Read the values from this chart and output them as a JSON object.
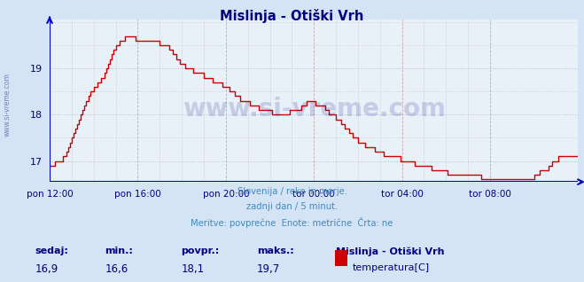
{
  "title": "Mislinja - Otiški Vrh",
  "bg_color": "#d4e4f4",
  "plot_bg_color": "#e8f0f8",
  "line_color": "#cc0000",
  "line_width": 1.0,
  "ylim": [
    16.55,
    20.05
  ],
  "yticks": [
    17,
    18,
    19
  ],
  "xlabel_color": "#000080",
  "ylabel_color": "#000080",
  "title_color": "#000080",
  "grid_color_dotted": "#c8a8a8",
  "grid_color_hline": "#aaaacc",
  "axis_color": "#0000cc",
  "watermark": "www.si-vreme.com",
  "watermark_color": "#000080",
  "watermark_alpha": 0.15,
  "subtitle_lines": [
    "Slovenija / reke in morje.",
    "zadnji dan / 5 minut.",
    "Meritve: povprečne  Enote: metrične  Črta: ne"
  ],
  "subtitle_color": "#4488bb",
  "footer_labels": [
    "sedaj:",
    "min.:",
    "povpr.:",
    "maks.:"
  ],
  "footer_values": [
    "16,9",
    "16,6",
    "18,1",
    "19,7"
  ],
  "footer_series_name": "Mislinja - Otiški Vrh",
  "footer_legend_label": "temperatura[C]",
  "footer_legend_color": "#cc0000",
  "footer_color": "#000080",
  "xtick_labels": [
    "pon 12:00",
    "pon 16:00",
    "pon 20:00",
    "tor 00:00",
    "tor 04:00",
    "tor 08:00"
  ],
  "xtick_positions": [
    0,
    48,
    96,
    144,
    192,
    240
  ],
  "n_points": 289,
  "temp_data": [
    16.9,
    16.9,
    16.9,
    17.0,
    17.0,
    17.0,
    17.0,
    17.1,
    17.1,
    17.2,
    17.3,
    17.4,
    17.5,
    17.6,
    17.7,
    17.8,
    17.9,
    18.0,
    18.1,
    18.2,
    18.3,
    18.4,
    18.5,
    18.5,
    18.6,
    18.6,
    18.7,
    18.7,
    18.8,
    18.8,
    18.9,
    19.0,
    19.1,
    19.2,
    19.3,
    19.4,
    19.5,
    19.5,
    19.6,
    19.6,
    19.6,
    19.7,
    19.7,
    19.7,
    19.7,
    19.7,
    19.7,
    19.6,
    19.6,
    19.6,
    19.6,
    19.6,
    19.6,
    19.6,
    19.6,
    19.6,
    19.6,
    19.6,
    19.6,
    19.6,
    19.5,
    19.5,
    19.5,
    19.5,
    19.5,
    19.4,
    19.4,
    19.3,
    19.3,
    19.2,
    19.2,
    19.1,
    19.1,
    19.1,
    19.0,
    19.0,
    19.0,
    19.0,
    18.9,
    18.9,
    18.9,
    18.9,
    18.9,
    18.9,
    18.8,
    18.8,
    18.8,
    18.8,
    18.8,
    18.7,
    18.7,
    18.7,
    18.7,
    18.7,
    18.6,
    18.6,
    18.6,
    18.6,
    18.5,
    18.5,
    18.5,
    18.4,
    18.4,
    18.4,
    18.3,
    18.3,
    18.3,
    18.3,
    18.3,
    18.2,
    18.2,
    18.2,
    18.2,
    18.2,
    18.1,
    18.1,
    18.1,
    18.1,
    18.1,
    18.1,
    18.1,
    18.0,
    18.0,
    18.0,
    18.0,
    18.0,
    18.0,
    18.0,
    18.0,
    18.0,
    18.0,
    18.1,
    18.1,
    18.1,
    18.1,
    18.1,
    18.1,
    18.2,
    18.2,
    18.2,
    18.3,
    18.3,
    18.3,
    18.3,
    18.3,
    18.2,
    18.2,
    18.2,
    18.2,
    18.2,
    18.1,
    18.1,
    18.0,
    18.0,
    18.0,
    18.0,
    17.9,
    17.9,
    17.9,
    17.8,
    17.8,
    17.7,
    17.7,
    17.6,
    17.6,
    17.5,
    17.5,
    17.5,
    17.4,
    17.4,
    17.4,
    17.4,
    17.3,
    17.3,
    17.3,
    17.3,
    17.3,
    17.2,
    17.2,
    17.2,
    17.2,
    17.2,
    17.1,
    17.1,
    17.1,
    17.1,
    17.1,
    17.1,
    17.1,
    17.1,
    17.1,
    17.0,
    17.0,
    17.0,
    17.0,
    17.0,
    17.0,
    17.0,
    17.0,
    16.9,
    16.9,
    16.9,
    16.9,
    16.9,
    16.9,
    16.9,
    16.9,
    16.9,
    16.8,
    16.8,
    16.8,
    16.8,
    16.8,
    16.8,
    16.8,
    16.8,
    16.8,
    16.7,
    16.7,
    16.7,
    16.7,
    16.7,
    16.7,
    16.7,
    16.7,
    16.7,
    16.7,
    16.7,
    16.7,
    16.7,
    16.7,
    16.7,
    16.7,
    16.7,
    16.7,
    16.6,
    16.6,
    16.6,
    16.6,
    16.6,
    16.6,
    16.6,
    16.6,
    16.6,
    16.6,
    16.6,
    16.6,
    16.6,
    16.6,
    16.6,
    16.6,
    16.6,
    16.6,
    16.6,
    16.6,
    16.6,
    16.6,
    16.6,
    16.6,
    16.6,
    16.6,
    16.6,
    16.6,
    16.6,
    16.7,
    16.7,
    16.7,
    16.8,
    16.8,
    16.8,
    16.8,
    16.8,
    16.9,
    16.9,
    17.0,
    17.0,
    17.0,
    17.1,
    17.1,
    17.1,
    17.1,
    17.1,
    17.1,
    17.1,
    17.1,
    17.1,
    17.1,
    17.1,
    17.1,
    16.9
  ]
}
